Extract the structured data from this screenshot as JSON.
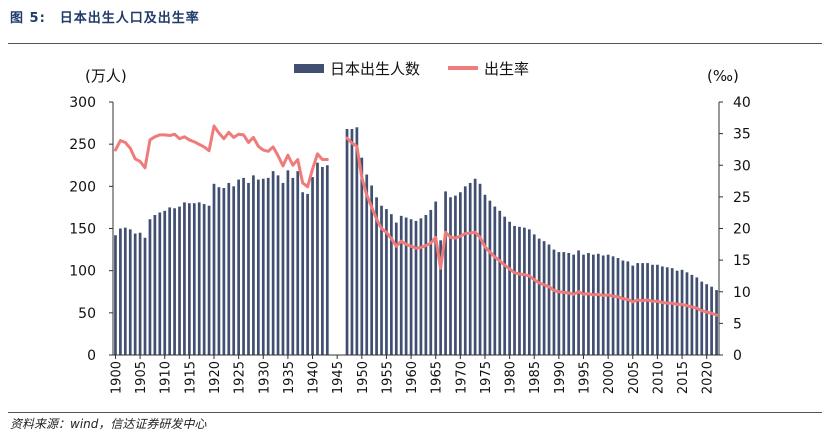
{
  "figure": {
    "label": "图 5:",
    "title": "日本出生人口及出生率"
  },
  "source": "资料来源：wind，信达证券研发中心",
  "colors": {
    "bar": "#414f71",
    "line": "#f07b7b",
    "title": "#1f3a6b"
  },
  "chart_data": {
    "type": "bar",
    "title": "",
    "legend_position": "top-center",
    "grid": false,
    "y_left": {
      "label": "(万人)",
      "range": [
        0,
        300
      ],
      "ticks": [
        0,
        50,
        100,
        150,
        200,
        250,
        300
      ]
    },
    "y_right": {
      "label": "(‰)",
      "range": [
        0,
        40
      ],
      "ticks": [
        0,
        5,
        10,
        15,
        20,
        25,
        30,
        35,
        40
      ]
    },
    "x_ticks": [
      1900,
      1905,
      1910,
      1915,
      1920,
      1925,
      1930,
      1935,
      1940,
      1945,
      1950,
      1955,
      1960,
      1965,
      1970,
      1975,
      1980,
      1985,
      1990,
      1995,
      2000,
      2005,
      2010,
      2015,
      2020
    ],
    "series": [
      {
        "name": "日本出生人数",
        "type": "bar",
        "axis": "left",
        "x": [
          1900,
          1901,
          1902,
          1903,
          1904,
          1905,
          1906,
          1907,
          1908,
          1909,
          1910,
          1911,
          1912,
          1913,
          1914,
          1915,
          1916,
          1917,
          1918,
          1919,
          1920,
          1921,
          1922,
          1923,
          1924,
          1925,
          1926,
          1927,
          1928,
          1929,
          1930,
          1931,
          1932,
          1933,
          1934,
          1935,
          1936,
          1937,
          1938,
          1939,
          1940,
          1941,
          1942,
          1943,
          1947,
          1948,
          1949,
          1950,
          1951,
          1952,
          1953,
          1954,
          1955,
          1956,
          1957,
          1958,
          1959,
          1960,
          1961,
          1962,
          1963,
          1964,
          1965,
          1966,
          1967,
          1968,
          1969,
          1970,
          1971,
          1972,
          1973,
          1974,
          1975,
          1976,
          1977,
          1978,
          1979,
          1980,
          1981,
          1982,
          1983,
          1984,
          1985,
          1986,
          1987,
          1988,
          1989,
          1990,
          1991,
          1992,
          1993,
          1994,
          1995,
          1996,
          1997,
          1998,
          1999,
          2000,
          2001,
          2002,
          2003,
          2004,
          2005,
          2006,
          2007,
          2008,
          2009,
          2010,
          2011,
          2012,
          2013,
          2014,
          2015,
          2016,
          2017,
          2018,
          2019,
          2020,
          2021,
          2022
        ],
        "values": [
          142,
          150,
          151,
          149,
          144,
          145,
          139,
          161,
          166,
          169,
          171,
          175,
          174,
          176,
          181,
          180,
          180,
          181,
          179,
          177,
          203,
          199,
          198,
          204,
          200,
          208,
          210,
          204,
          213,
          208,
          209,
          210,
          218,
          213,
          204,
          219,
          210,
          218,
          193,
          191,
          211,
          228,
          223,
          225,
          268,
          268,
          270,
          234,
          214,
          201,
          187,
          177,
          173,
          167,
          157,
          165,
          163,
          161,
          159,
          162,
          166,
          172,
          182,
          136,
          194,
          187,
          189,
          193,
          200,
          204,
          209,
          203,
          190,
          183,
          176,
          171,
          164,
          158,
          153,
          152,
          151,
          149,
          143,
          138,
          135,
          131,
          125,
          122,
          122,
          121,
          119,
          124,
          119,
          121,
          119,
          120,
          118,
          119,
          117,
          115,
          112,
          111,
          106,
          109,
          109,
          109,
          107,
          107,
          105,
          104,
          103,
          100,
          101,
          98,
          95,
          92,
          87,
          84,
          81,
          77
        ]
      },
      {
        "name": "出生率",
        "type": "line",
        "axis": "right",
        "x": [
          1900,
          1901,
          1902,
          1903,
          1904,
          1905,
          1906,
          1907,
          1908,
          1909,
          1910,
          1911,
          1912,
          1913,
          1914,
          1915,
          1916,
          1917,
          1918,
          1919,
          1920,
          1921,
          1922,
          1923,
          1924,
          1925,
          1926,
          1927,
          1928,
          1929,
          1930,
          1931,
          1932,
          1933,
          1934,
          1935,
          1936,
          1937,
          1938,
          1939,
          1940,
          1941,
          1942,
          1943,
          1947,
          1948,
          1949,
          1950,
          1951,
          1952,
          1953,
          1954,
          1955,
          1956,
          1957,
          1958,
          1959,
          1960,
          1961,
          1962,
          1963,
          1964,
          1965,
          1966,
          1967,
          1968,
          1969,
          1970,
          1971,
          1972,
          1973,
          1974,
          1975,
          1976,
          1977,
          1978,
          1979,
          1980,
          1981,
          1982,
          1983,
          1984,
          1985,
          1986,
          1987,
          1988,
          1989,
          1990,
          1991,
          1992,
          1993,
          1994,
          1995,
          1996,
          1997,
          1998,
          1999,
          2000,
          2001,
          2002,
          2003,
          2004,
          2005,
          2006,
          2007,
          2008,
          2009,
          2010,
          2011,
          2012,
          2013,
          2014,
          2015,
          2016,
          2017,
          2018,
          2019,
          2020,
          2021,
          2022
        ],
        "values": [
          32.4,
          33.9,
          33.6,
          32.7,
          31.0,
          30.6,
          29.6,
          34.0,
          34.5,
          34.8,
          34.8,
          34.7,
          34.9,
          34.2,
          34.5,
          34.0,
          33.7,
          33.3,
          32.9,
          32.3,
          36.2,
          35.1,
          34.2,
          35.2,
          34.4,
          34.9,
          34.8,
          33.6,
          34.4,
          33.0,
          32.4,
          32.2,
          32.9,
          31.5,
          29.9,
          31.6,
          30.0,
          30.9,
          27.2,
          26.6,
          29.4,
          31.8,
          30.9,
          30.9,
          34.3,
          33.5,
          33.0,
          28.1,
          25.3,
          23.4,
          21.5,
          20.0,
          19.4,
          18.4,
          17.2,
          18.0,
          17.5,
          17.2,
          16.9,
          17.0,
          17.3,
          17.7,
          18.6,
          13.7,
          19.4,
          18.6,
          18.5,
          18.8,
          19.2,
          19.3,
          19.4,
          18.6,
          17.1,
          16.3,
          15.5,
          14.9,
          14.2,
          13.6,
          13.0,
          12.8,
          12.7,
          12.5,
          11.9,
          11.4,
          11.1,
          10.8,
          10.2,
          10.0,
          9.9,
          9.8,
          9.6,
          10.0,
          9.6,
          9.7,
          9.5,
          9.6,
          9.4,
          9.5,
          9.3,
          9.2,
          8.9,
          8.8,
          8.4,
          8.7,
          8.6,
          8.7,
          8.5,
          8.5,
          8.3,
          8.2,
          8.2,
          8.0,
          8.0,
          7.8,
          7.6,
          7.4,
          7.0,
          6.8,
          6.6,
          6.3
        ]
      }
    ]
  }
}
